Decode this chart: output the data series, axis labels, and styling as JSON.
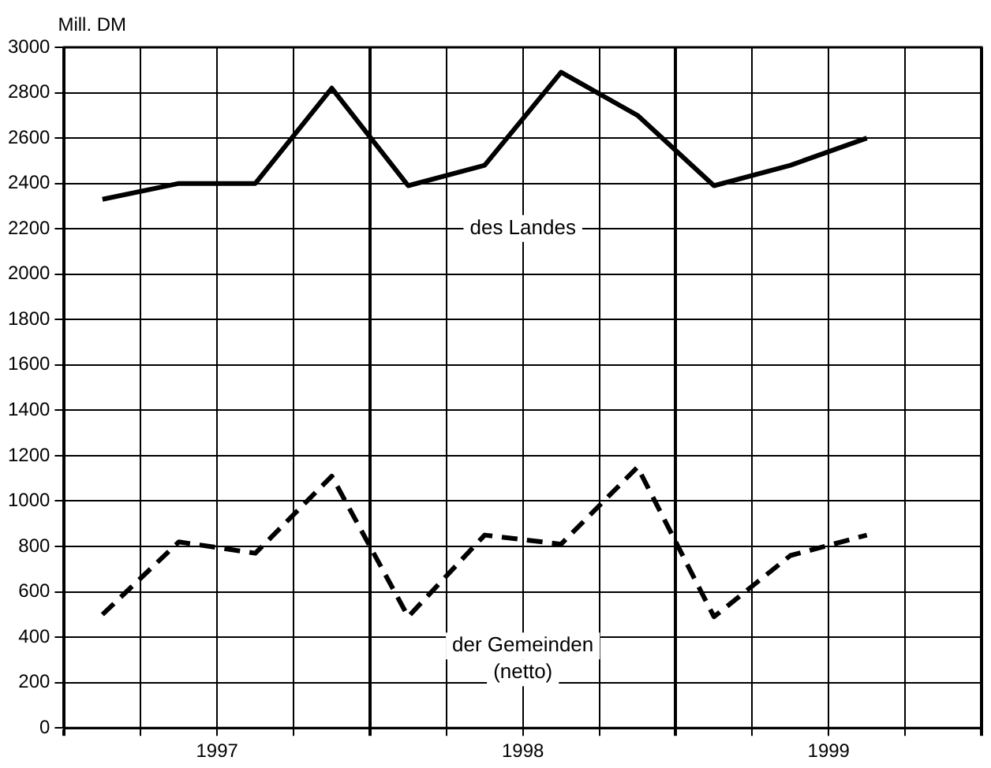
{
  "chart_data": {
    "type": "line",
    "ylabel": "Mill. DM",
    "x": [
      1997.125,
      1997.375,
      1997.625,
      1997.875,
      1998.125,
      1998.375,
      1998.625,
      1998.875,
      1999.125,
      1999.375,
      1999.625
    ],
    "series": [
      {
        "name": "des Landes",
        "color": "#000000",
        "line_style": "solid",
        "values": [
          2330,
          2400,
          2400,
          2820,
          2390,
          2480,
          2890,
          2700,
          2390,
          2480,
          2600
        ]
      },
      {
        "name": "der Gemeinden (netto)",
        "color": "#000000",
        "line_style": "dashed",
        "values": [
          500,
          820,
          770,
          1110,
          490,
          850,
          810,
          1150,
          490,
          760,
          850
        ]
      }
    ],
    "xlim": [
      1997,
      2000
    ],
    "xticks": [
      {
        "value": 1997,
        "label": null
      },
      {
        "value": 1997.25,
        "label": null
      },
      {
        "value": 1997.5,
        "label": "1997"
      },
      {
        "value": 1997.75,
        "label": null
      },
      {
        "value": 1998,
        "label": null
      },
      {
        "value": 1998.25,
        "label": null
      },
      {
        "value": 1998.5,
        "label": "1998"
      },
      {
        "value": 1998.75,
        "label": null
      },
      {
        "value": 1999,
        "label": null
      },
      {
        "value": 1999.25,
        "label": null
      },
      {
        "value": 1999.5,
        "label": "1999"
      },
      {
        "value": 1999.75,
        "label": null
      },
      {
        "value": 2000,
        "label": null
      }
    ],
    "ylim": [
      0,
      3000
    ],
    "yticks": [
      0,
      200,
      400,
      600,
      800,
      1000,
      1200,
      1400,
      1600,
      1800,
      2000,
      2200,
      2400,
      2600,
      2800,
      3000
    ],
    "grid": true,
    "legend": false,
    "marker": "none"
  }
}
